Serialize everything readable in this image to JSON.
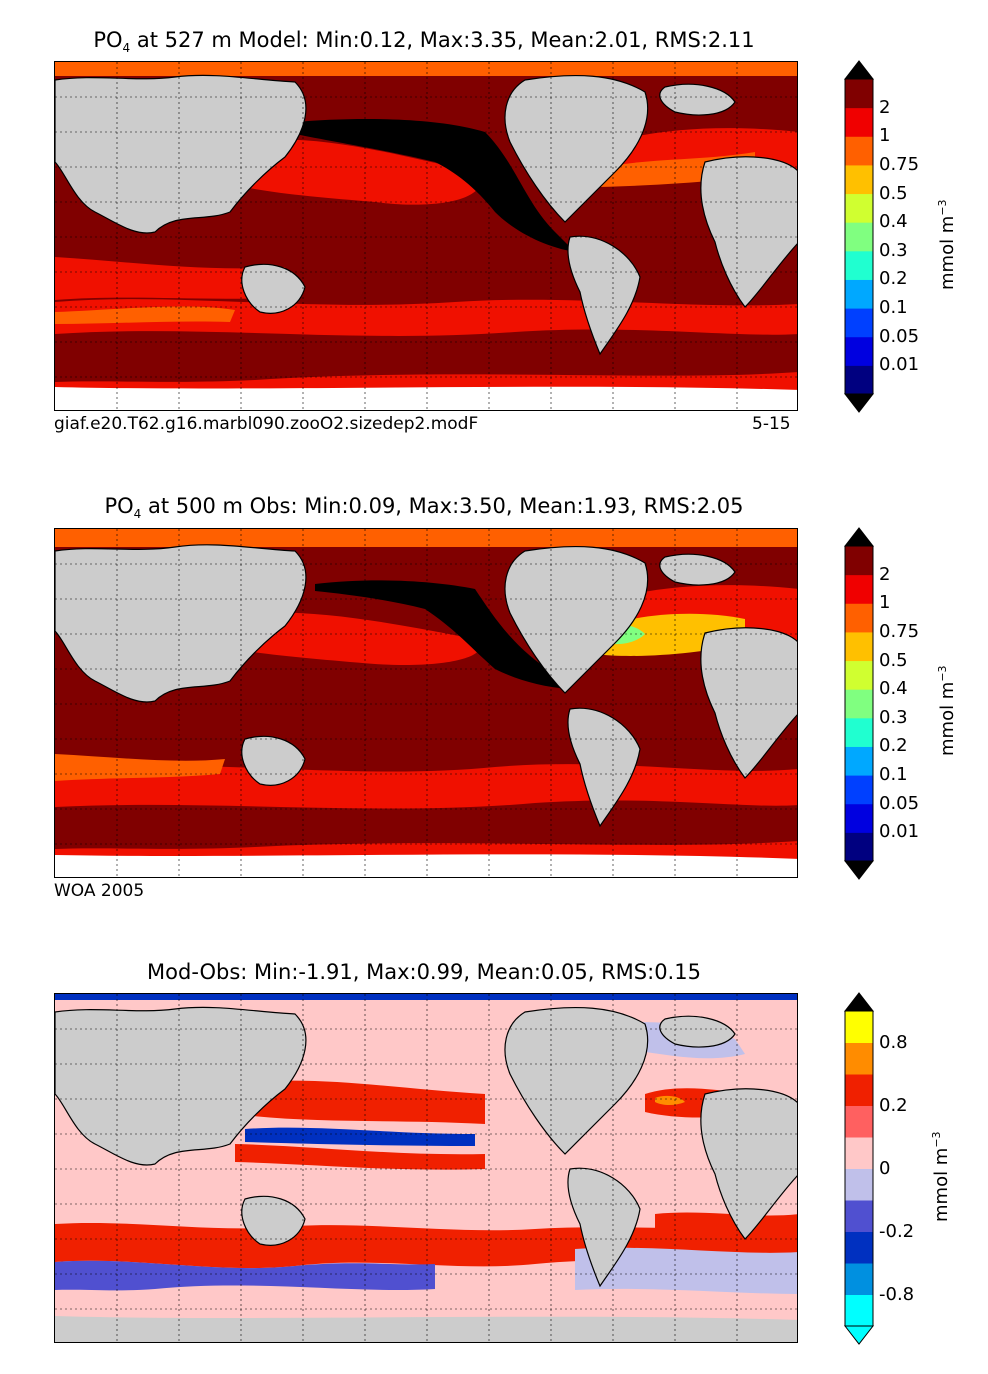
{
  "panels": [
    {
      "id": "model",
      "title_main": "PO",
      "title_sub": "4",
      "title_rest": " at 527 m Model: Min:0.12, Max:3.35, Mean:2.01, RMS:2.11",
      "note_left": "giaf.e20.T62.g16.marbl090.zooO2.sizedep2.modF",
      "note_right": "5-15",
      "colorbar": {
        "colors": [
          "#000080",
          "#0000e0",
          "#0040ff",
          "#00a8ff",
          "#20ffd0",
          "#80ff80",
          "#d0ff30",
          "#ffc000",
          "#ff6000",
          "#f00000",
          "#800000"
        ],
        "tick_labels": [
          "0.01",
          "0.05",
          "0.1",
          "0.2",
          "0.3",
          "0.4",
          "0.5",
          "0.75",
          "1",
          "2"
        ],
        "under_color": "#000000",
        "over_color": "#000000",
        "units_main": "mmol m",
        "units_sup": "−3"
      }
    },
    {
      "id": "obs",
      "title_main": "PO",
      "title_sub": "4",
      "title_rest": " at 500 m Obs: Min:0.09, Max:3.50, Mean:1.93, RMS:2.05",
      "note_left": "WOA 2005",
      "note_right": "",
      "colorbar": {
        "colors": [
          "#000080",
          "#0000e0",
          "#0040ff",
          "#00a8ff",
          "#20ffd0",
          "#80ff80",
          "#d0ff30",
          "#ffc000",
          "#ff6000",
          "#f00000",
          "#800000"
        ],
        "tick_labels": [
          "0.01",
          "0.05",
          "0.1",
          "0.2",
          "0.3",
          "0.4",
          "0.5",
          "0.75",
          "1",
          "2"
        ],
        "under_color": "#000000",
        "over_color": "#000000",
        "units_main": "mmol m",
        "units_sup": "−3"
      }
    },
    {
      "id": "diff",
      "title_main": "",
      "title_sub": "",
      "title_rest": "Mod-Obs: Min:-1.91, Max:0.99, Mean:0.05, RMS:0.15",
      "note_left": "",
      "note_right": "",
      "colorbar": {
        "colors": [
          "#00ffff",
          "#0090e0",
          "#0030c0",
          "#5050d0",
          "#c0c0ea",
          "#ffc8c8",
          "#ff6060",
          "#f02000",
          "#ff8c00",
          "#ffff00"
        ],
        "tick_labels": [
          "-0.8",
          "",
          "-0.2",
          "",
          "0",
          "",
          "0.2",
          "",
          "0.8"
        ],
        "under_color": "#00ffff",
        "over_color": "#000000",
        "units_main": "mmol m",
        "units_sup": "−3"
      }
    }
  ],
  "chart_data": [
    {
      "type": "heatmap",
      "title": "PO4 at 527 m Model: Min:0.12, Max:3.35, Mean:2.01, RMS:2.11",
      "variable": "PO4",
      "depth_m": 527,
      "source": "Model",
      "stats": {
        "min": 0.12,
        "max": 3.35,
        "mean": 2.01,
        "rms": 2.11
      },
      "levels": [
        0.01,
        0.05,
        0.1,
        0.2,
        0.3,
        0.4,
        0.5,
        0.75,
        1,
        2
      ],
      "units": "mmol m-3",
      "grid": true
    },
    {
      "type": "heatmap",
      "title": "PO4 at 500 m Obs: Min:0.09, Max:3.50, Mean:1.93, RMS:2.05",
      "variable": "PO4",
      "depth_m": 500,
      "source": "Obs",
      "stats": {
        "min": 0.09,
        "max": 3.5,
        "mean": 1.93,
        "rms": 2.05
      },
      "levels": [
        0.01,
        0.05,
        0.1,
        0.2,
        0.3,
        0.4,
        0.5,
        0.75,
        1,
        2
      ],
      "units": "mmol m-3",
      "grid": true
    },
    {
      "type": "heatmap",
      "title": "Mod-Obs: Min:-1.91, Max:0.99, Mean:0.05, RMS:0.15",
      "stats": {
        "min": -1.91,
        "max": 0.99,
        "mean": 0.05,
        "rms": 0.15
      },
      "tick_labels": [
        -0.8,
        -0.2,
        0,
        0.2,
        0.8
      ],
      "units": "mmol m-3",
      "grid": true
    }
  ]
}
